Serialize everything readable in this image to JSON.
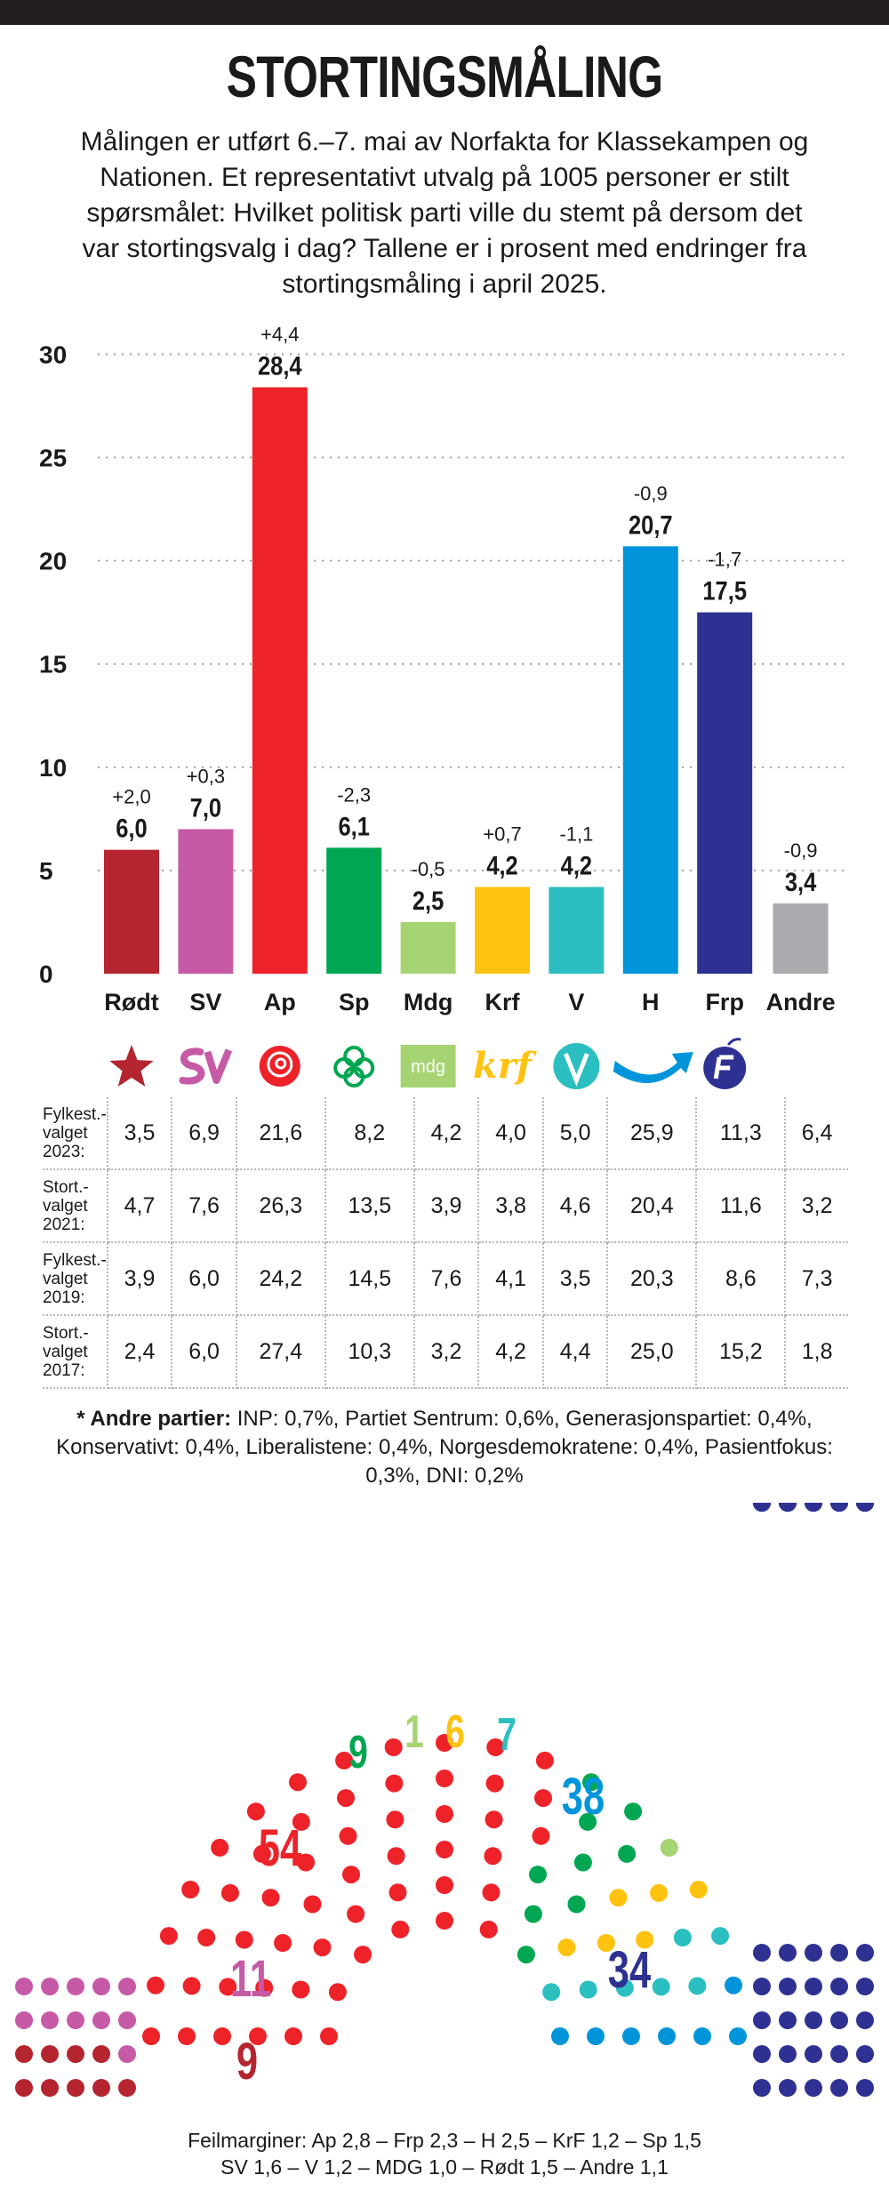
{
  "title": "STORTINGSMÅLING",
  "intro": "Målingen er utført 6.–7. mai av Norfakta for Klassekampen og Nationen. Et representativt utvalg på 1005 personer er stilt spørsmålet: Hvilket politisk parti ville du stemt på dersom det var stortingsvalg i dag? Tallene er i prosent med endringer fra stortingsmåling i april 2025.",
  "chart_data": {
    "type": "bar",
    "title": "STORTINGSMÅLING",
    "categories": [
      "Rødt",
      "SV",
      "Ap",
      "Sp",
      "Mdg",
      "Krf",
      "V",
      "H",
      "Frp",
      "Andre"
    ],
    "values": [
      6.0,
      7.0,
      28.4,
      6.1,
      2.5,
      4.2,
      4.2,
      20.7,
      17.5,
      3.4
    ],
    "value_labels": [
      "6,0",
      "7,0",
      "28,4",
      "6,1",
      "2,5",
      "4,2",
      "4,2",
      "20,7",
      "17,5",
      "3,4"
    ],
    "changes": [
      "+2,0",
      "+0,3",
      "+4,4",
      "-2,3",
      "-0,5",
      "+0,7",
      "-1,1",
      "-0,9",
      "-1,7",
      "-0,9"
    ],
    "colors": [
      "#b5252f",
      "#c65aa6",
      "#ee2229",
      "#00a651",
      "#a6d473",
      "#ffc20e",
      "#2cbfc1",
      "#0095da",
      "#2e3192",
      "#a9abae"
    ],
    "ylim": [
      0,
      30
    ],
    "yticks": [
      "0",
      "5",
      "10",
      "15",
      "20",
      "25",
      "30"
    ],
    "ytick_values": [
      0,
      5,
      10,
      15,
      20,
      25,
      30
    ],
    "grid": true,
    "xlabel": "",
    "ylabel": ""
  },
  "party_icons": [
    "roedt-logo-icon",
    "sv-logo-icon",
    "ap-rose-icon",
    "sp-clover-icon",
    "mdg-logo-icon",
    "krf-logo-icon",
    "v-logo-icon",
    "h-arrow-icon",
    "frp-logo-icon"
  ],
  "mdg_logo_text": "mdg",
  "krf_logo_text": "krf",
  "history": [
    {
      "label": [
        "Fylkest.-",
        "valget",
        "2023:"
      ],
      "values": [
        "3,5",
        "6,9",
        "21,6",
        "8,2",
        "4,2",
        "4,0",
        "5,0",
        "25,9",
        "11,3",
        "6,4"
      ]
    },
    {
      "label": [
        "Stort.-",
        "valget",
        "2021:"
      ],
      "values": [
        "4,7",
        "7,6",
        "26,3",
        "13,5",
        "3,9",
        "3,8",
        "4,6",
        "20,4",
        "11,6",
        "3,2"
      ]
    },
    {
      "label": [
        "Fylkest.-",
        "valget",
        "2019:"
      ],
      "values": [
        "3,9",
        "6,0",
        "24,2",
        "14,5",
        "7,6",
        "4,1",
        "3,5",
        "20,3",
        "8,6",
        "7,3"
      ]
    },
    {
      "label": [
        "Stort.-",
        "valget",
        "2017:"
      ],
      "values": [
        "2,4",
        "6,0",
        "27,4",
        "10,3",
        "3,2",
        "4,2",
        "4,4",
        "25,0",
        "15,2",
        "1,8"
      ]
    }
  ],
  "note": {
    "bold": "* Andre partier:",
    "text": " INP: 0,7%, Partiet Sentrum: 0,6%, Generasjonspartiet: 0,4%, Konservativt: 0,4%, Liberalistene: 0,4%, Norgesdemokratene: 0,4%, Pasientfokus: 0,3%, DNI: 0,2%"
  },
  "seats": {
    "ap": {
      "count": 54,
      "label": "54",
      "color": "#ee2229"
    },
    "sp": {
      "count": 9,
      "label": "9",
      "color": "#00a651"
    },
    "mdg": {
      "count": 1,
      "label": "1",
      "color": "#a6d473"
    },
    "krf": {
      "count": 6,
      "label": "6",
      "color": "#ffc20e"
    },
    "v": {
      "count": 7,
      "label": "7",
      "color": "#2cbfc1"
    },
    "h": {
      "count": 38,
      "label": "38",
      "color": "#0095da"
    },
    "frp": {
      "count": 34,
      "label": "34",
      "color": "#2e3192"
    },
    "sv": {
      "count": 11,
      "label": "11",
      "color": "#c65aa6"
    },
    "roedt": {
      "count": 9,
      "label": "9",
      "color": "#b5252f"
    }
  },
  "margins": {
    "line1": "Feilmarginer: Ap 2,8 – Frp 2,3 – H 2,5 – KrF 1,2 – Sp 1,5",
    "line2": "SV 1,6 – V 1,2 – MDG 1,0 – Rødt 1,5 – Andre 1,1"
  }
}
